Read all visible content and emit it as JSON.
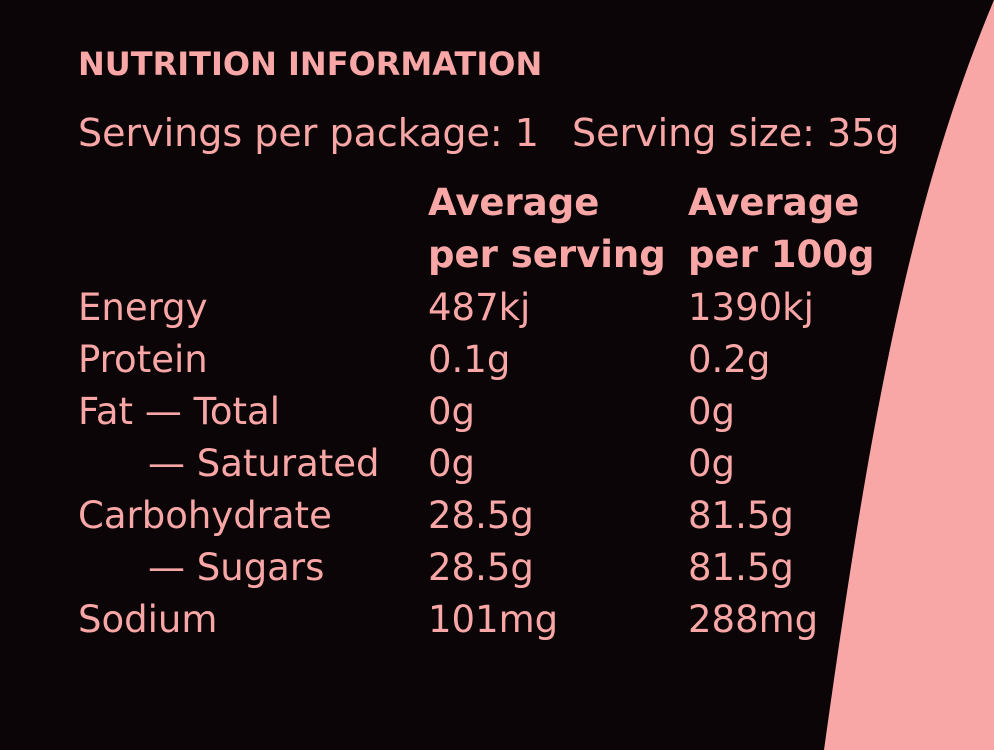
{
  "header": {
    "title": "NUTRITION INFORMATION"
  },
  "servings": {
    "per_package": "Servings per package: 1",
    "serving_size": "Serving size: 35g"
  },
  "table": {
    "columns": [
      [
        "Average",
        "per serving"
      ],
      [
        "Average",
        "per 100g"
      ]
    ],
    "rows": [
      [
        "Energy",
        "487kj",
        "1390kj"
      ],
      [
        "Protein",
        "0.1g",
        "0.2g"
      ],
      [
        "Fat — Total",
        "0g",
        "0g"
      ],
      [
        "— Saturated",
        "0g",
        "0g"
      ],
      [
        "Carbohydrate",
        "28.5g",
        "81.5g"
      ],
      [
        "— Sugars",
        "28.5g",
        "81.5g"
      ],
      [
        "Sodium",
        "101mg",
        "288mg"
      ]
    ]
  }
}
